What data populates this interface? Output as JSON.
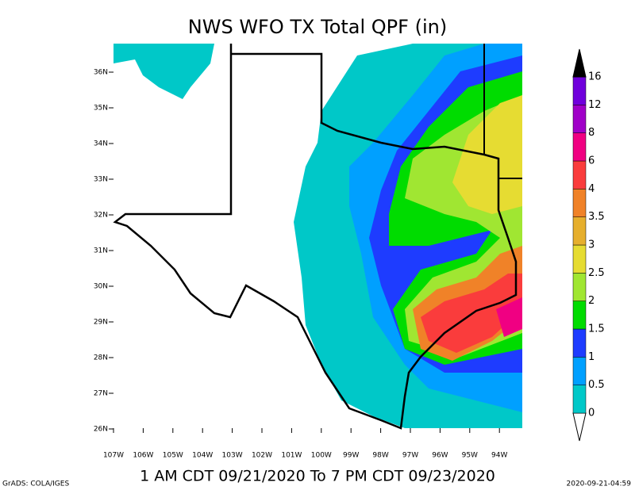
{
  "title": "NWS WFO TX Total QPF (in)",
  "lat_labels": [
    "36N",
    "35N",
    "34N",
    "33N",
    "32N",
    "31N",
    "30N",
    "29N",
    "28N",
    "27N",
    "26N"
  ],
  "lon_labels": [
    "107W",
    "106W",
    "105W",
    "104W",
    "103W",
    "102W",
    "101W",
    "100W",
    "99W",
    "98W",
    "97W",
    "96W",
    "95W",
    "94W"
  ],
  "colorbar": [
    {
      "label": "0",
      "color": "#00c8c8"
    },
    {
      "label": "0.5",
      "color": "#00a0ff"
    },
    {
      "label": "1",
      "color": "#1e3cff"
    },
    {
      "label": "1.5",
      "color": "#00dc00"
    },
    {
      "label": "2",
      "color": "#a0e632"
    },
    {
      "label": "2.5",
      "color": "#e6dc32"
    },
    {
      "label": "3",
      "color": "#e6af2d"
    },
    {
      "label": "3.5",
      "color": "#f08228"
    },
    {
      "label": "4",
      "color": "#fa3c3c"
    },
    {
      "label": "6",
      "color": "#f00082"
    },
    {
      "label": "8",
      "color": "#a000c8"
    },
    {
      "label": "12",
      "color": "#7000dc"
    },
    {
      "label": "16",
      "color": "#000000"
    }
  ],
  "period": "1 AM CDT 09/21/2020 To 7 PM CDT 09/23/2020",
  "credit": "GrADS: COLA/IGES",
  "timestamp": "2020-09-21-04:59"
}
